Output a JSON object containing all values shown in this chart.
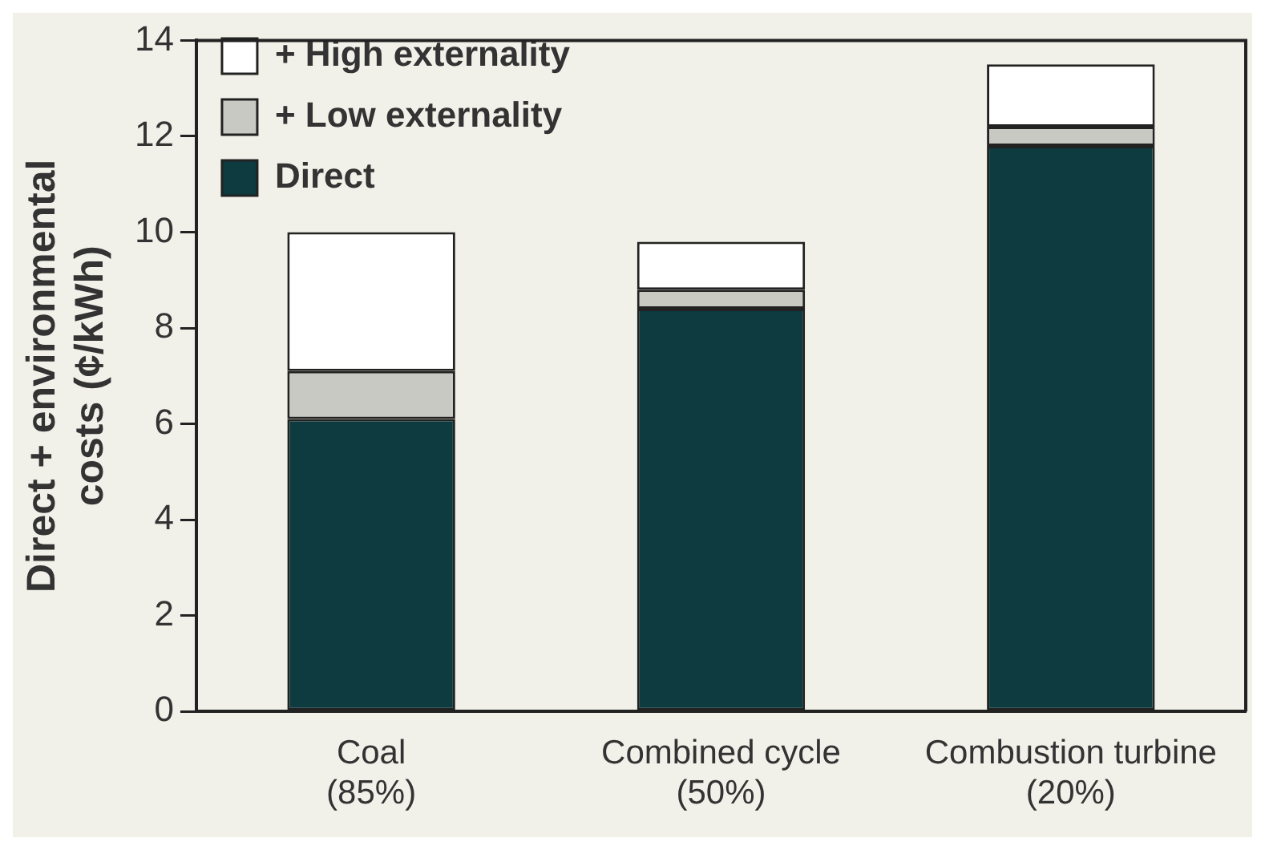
{
  "chart_data": {
    "type": "bar",
    "ylabel": "Direct + environmental costs (¢/kWh)",
    "categories": [
      "Coal (85%)",
      "Combined cycle (50%)",
      "Combustion turbine (20%)"
    ],
    "stacked": true,
    "series": [
      {
        "name": "Direct",
        "color": "#0d3b40",
        "values": [
          6.1,
          8.4,
          11.8
        ]
      },
      {
        "name": "+ Low externality",
        "color": "#c9c9c4",
        "values": [
          1.0,
          0.4,
          0.4
        ]
      },
      {
        "name": "+ High externality",
        "color": "#ffffff",
        "values": [
          2.9,
          1.0,
          1.3
        ]
      }
    ],
    "ylim": [
      0,
      14
    ],
    "yticks": [
      0,
      2,
      4,
      6,
      8,
      10,
      12,
      14
    ],
    "grid": false,
    "legend": "top left"
  }
}
